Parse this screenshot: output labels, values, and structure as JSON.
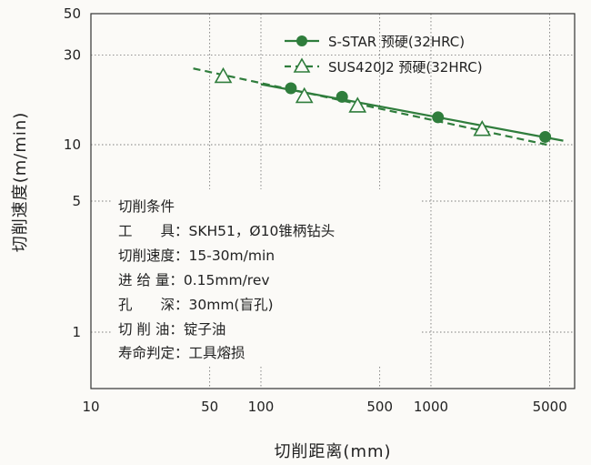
{
  "chart_data": {
    "type": "line",
    "title": "",
    "xlabel": "切削距离(mm)",
    "ylabel": "切削速度(m/min)",
    "x_scale": "log",
    "y_scale": "log",
    "xlim": [
      10,
      7000
    ],
    "ylim": [
      0.5,
      50
    ],
    "x_tick_labels": [
      "10",
      "50",
      "100",
      "500",
      "1000",
      "5000"
    ],
    "x_tick_values": [
      10,
      50,
      100,
      500,
      1000,
      5000
    ],
    "y_tick_labels": [
      "50",
      "30",
      "10",
      "5",
      "1"
    ],
    "y_tick_values": [
      50,
      30,
      10,
      5,
      1
    ],
    "grid": true,
    "legend_position": "top-right",
    "series": [
      {
        "name": "S-STAR 预硬(32HRC)",
        "color": "#2f7d3c",
        "line_style": "solid",
        "marker": "circle",
        "points": [
          {
            "x": 150,
            "y": 20
          },
          {
            "x": 300,
            "y": 18
          },
          {
            "x": 1100,
            "y": 14
          },
          {
            "x": 4700,
            "y": 11
          }
        ],
        "trend": [
          [
            100,
            21
          ],
          [
            6000,
            10.5
          ]
        ]
      },
      {
        "name": "SUS420J2 预硬(32HRC)",
        "color": "#2f7d3c",
        "line_style": "dashed",
        "marker": "triangle",
        "points": [
          {
            "x": 60,
            "y": 23
          },
          {
            "x": 180,
            "y": 18
          },
          {
            "x": 370,
            "y": 16
          },
          {
            "x": 2000,
            "y": 12
          }
        ],
        "trend": [
          [
            40,
            25.5
          ],
          [
            4800,
            10
          ]
        ]
      }
    ],
    "annotation": {
      "title": "切削条件",
      "lines": [
        "工　　具：SKH51，Ø10锥柄钻头",
        "切削速度：15-30m/min",
        "进 给 量：0.15mm/rev",
        "孔　　深：30mm(盲孔)",
        "切 削 油：锭子油",
        "寿命判定：工具熔损"
      ]
    }
  }
}
